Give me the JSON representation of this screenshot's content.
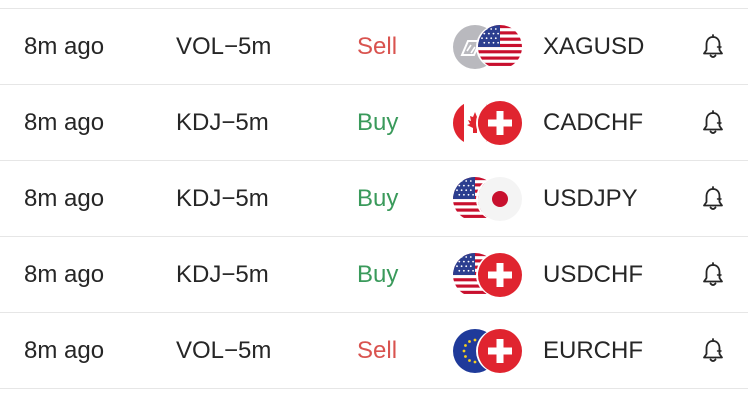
{
  "alerts": [
    {
      "time": "8m ago",
      "indicator": "VOL−5m",
      "signal": "Sell",
      "signal_type": "sell",
      "base_flag": "silver-icon",
      "quote_flag": "us-flag-icon",
      "pair": "XAGUSD"
    },
    {
      "time": "8m ago",
      "indicator": "KDJ−5m",
      "signal": "Buy",
      "signal_type": "buy",
      "base_flag": "canada-flag-icon",
      "quote_flag": "switzerland-flag-icon",
      "pair": "CADCHF"
    },
    {
      "time": "8m ago",
      "indicator": "KDJ−5m",
      "signal": "Buy",
      "signal_type": "buy",
      "base_flag": "us-flag-icon",
      "quote_flag": "japan-flag-icon",
      "pair": "USDJPY"
    },
    {
      "time": "8m ago",
      "indicator": "KDJ−5m",
      "signal": "Buy",
      "signal_type": "buy",
      "base_flag": "us-flag-icon",
      "quote_flag": "switzerland-flag-icon",
      "pair": "USDCHF"
    },
    {
      "time": "8m ago",
      "indicator": "VOL−5m",
      "signal": "Sell",
      "signal_type": "sell",
      "base_flag": "eu-flag-icon",
      "quote_flag": "switzerland-flag-icon",
      "pair": "EURCHF"
    }
  ],
  "colors": {
    "sell": "#d9534f",
    "buy": "#3a9a5b",
    "text": "#262626",
    "divider": "#e6e6e6"
  },
  "icons": {
    "alert": "bell-icon"
  }
}
